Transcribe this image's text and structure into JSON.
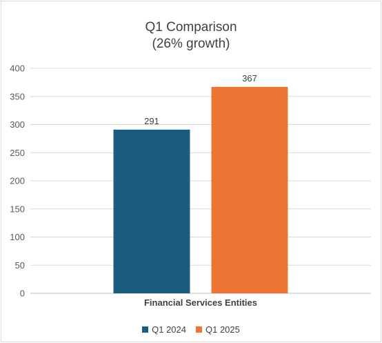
{
  "chart_data": {
    "type": "bar",
    "title": "Q1 Comparison",
    "subtitle": "(26% growth)",
    "categories": [
      "Financial Services Entities"
    ],
    "series": [
      {
        "name": "Q1 2024",
        "values": [
          291
        ],
        "color": "#1a5d7e"
      },
      {
        "name": "Q1 2025",
        "values": [
          367
        ],
        "color": "#ed7433"
      }
    ],
    "xlabel": "",
    "ylabel": "",
    "ylim": [
      0,
      400
    ],
    "yticks": [
      0,
      50,
      100,
      150,
      200,
      250,
      300,
      350,
      400
    ],
    "grid": true,
    "legend_position": "bottom",
    "data_labels": true
  }
}
